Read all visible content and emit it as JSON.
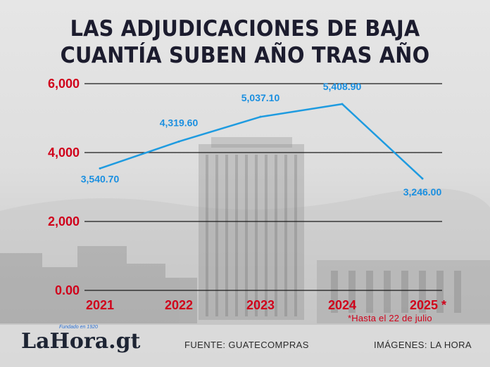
{
  "title_line1": "LAS ADJUDICACIONES DE BAJA",
  "title_line2": "CUANTÍA SUBEN AÑO TRAS AÑO",
  "footnote": "*Hasta el 22 de julio",
  "source_text": "FUENTE: GUATECOMPRAS",
  "images_text": "IMÁGENES:  LA HORA",
  "logo": {
    "text": "LaHora.gt",
    "tagline": "Fundado en 1920"
  },
  "colors": {
    "line": "#1e9be0",
    "label": "#1a8fe0",
    "axis_red": "#d0021b",
    "title": "#1c1c2e",
    "grid": "#1a1a1a"
  },
  "chart_data": {
    "type": "line",
    "categories": [
      "2021",
      "2022",
      "2023",
      "2024",
      "2025 *"
    ],
    "values": [
      3540.7,
      4319.6,
      5037.1,
      5408.9,
      3246.0
    ],
    "data_labels": [
      "3,540.70",
      "4,319.60",
      "5,037.10",
      "5,408.90",
      "3,246.00"
    ],
    "yticks": [
      0,
      2000,
      4000,
      6000
    ],
    "ytick_labels": [
      "0.00",
      "2,000",
      "4,000",
      "6,000"
    ],
    "ylim": [
      0,
      6000
    ],
    "grid": true,
    "title": "LAS ADJUDICACIONES DE BAJA CUANTÍA SUBEN AÑO TRAS AÑO"
  }
}
